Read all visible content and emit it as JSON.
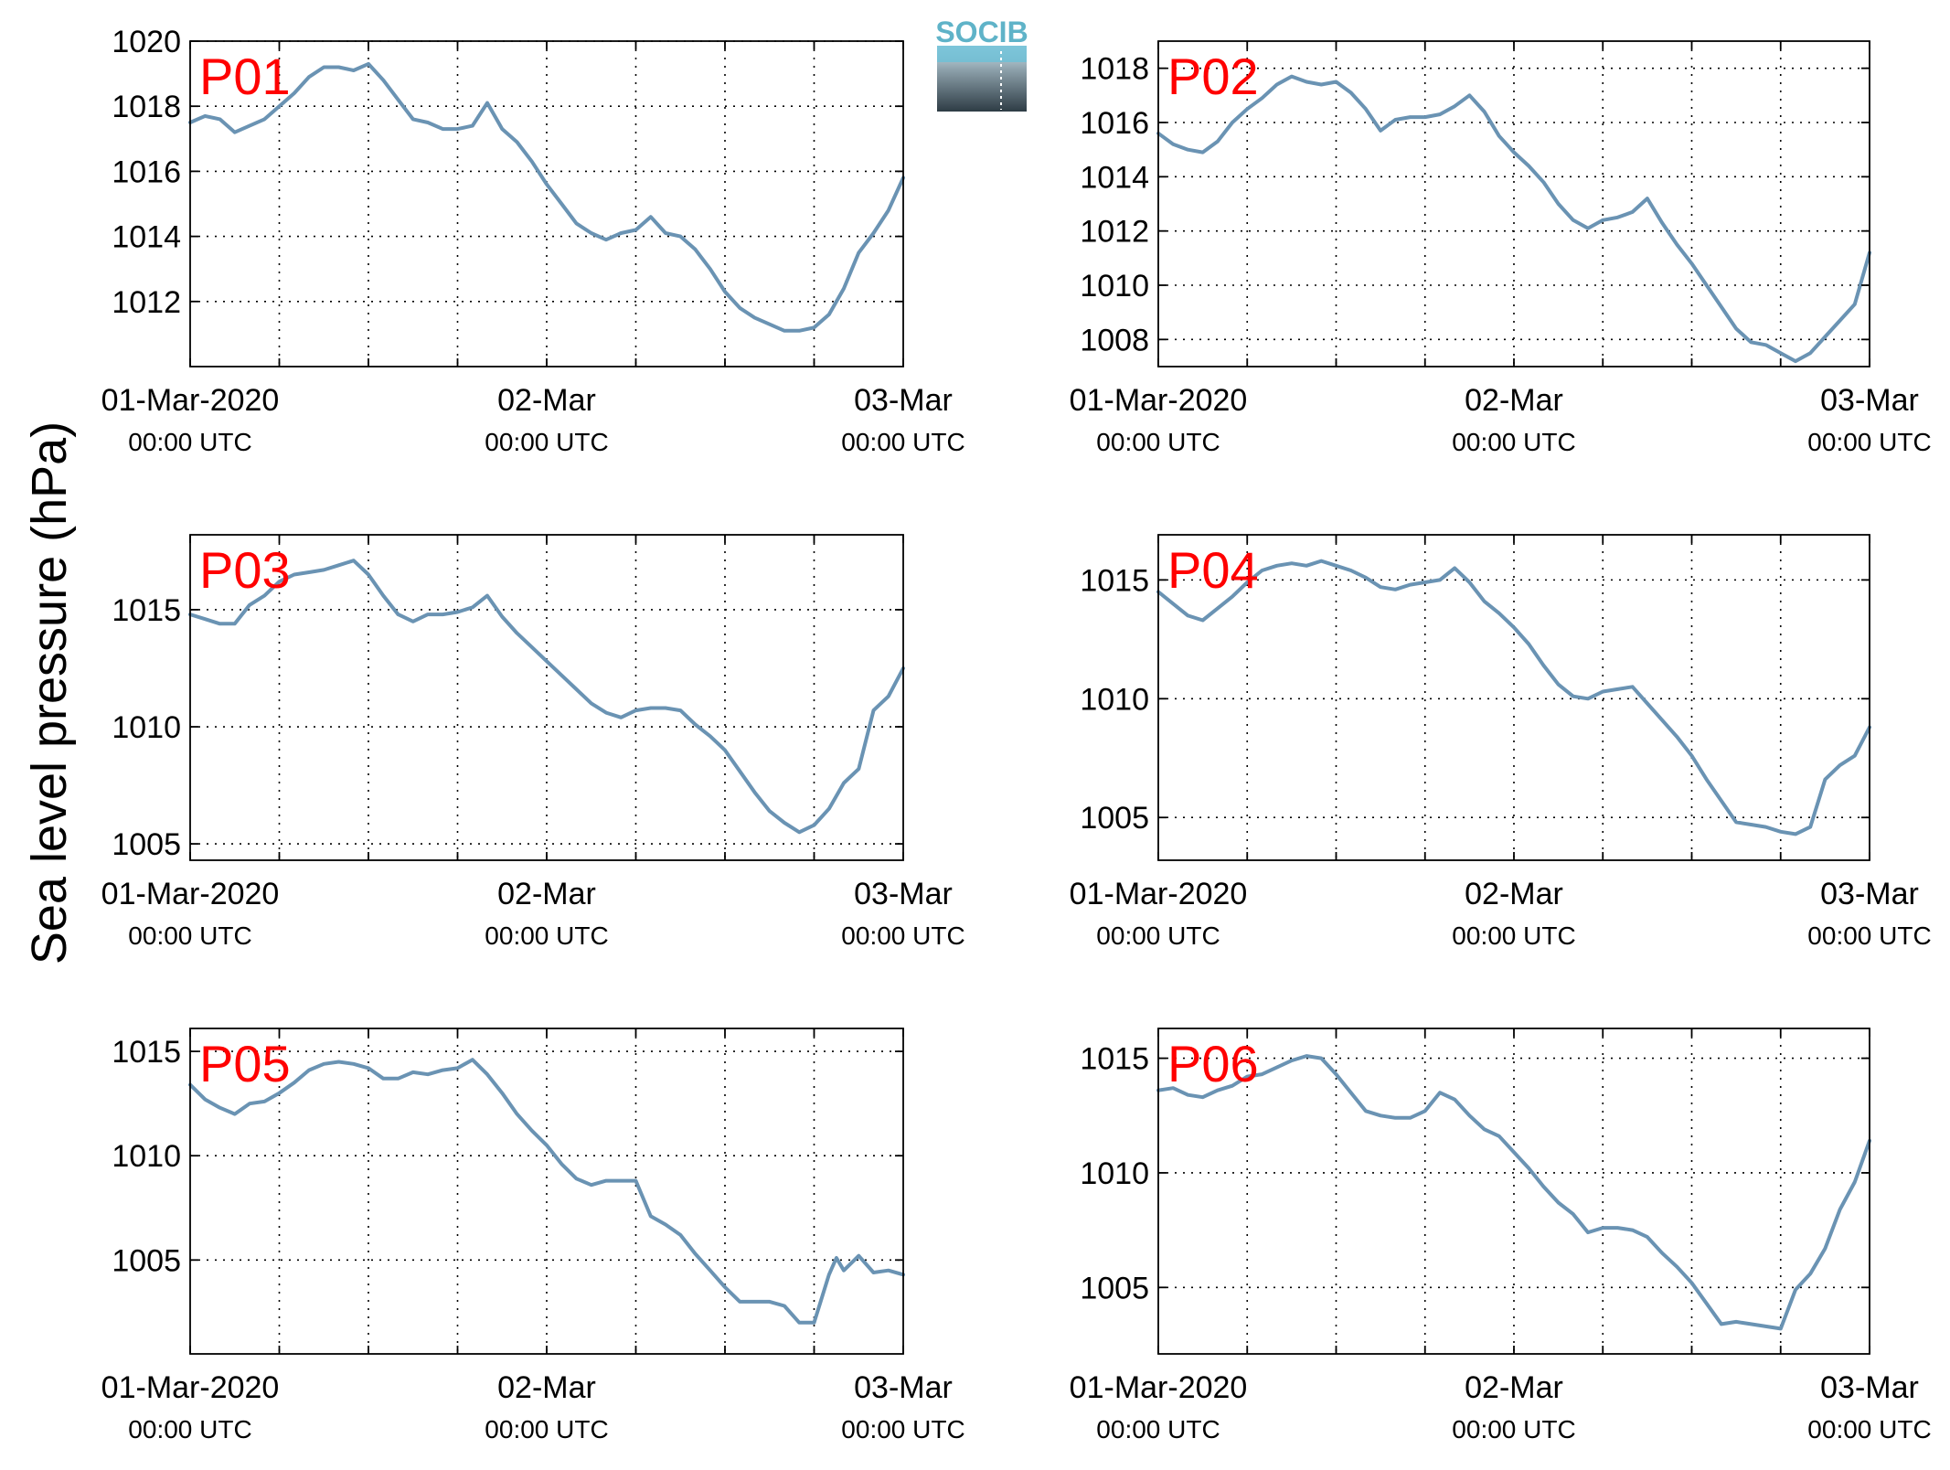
{
  "figure": {
    "ylabel": "Sea level pressure (hPa)",
    "logo_text": "SOCIB"
  },
  "colors": {
    "line": "#6a93b3",
    "panel_label": "#ff0000",
    "logo_text": "#5fb3c8",
    "logo_dark": "#2e3c45",
    "grid": "#000000"
  },
  "x_ticks": [
    {
      "x": 0,
      "main": "01-Mar-2020",
      "sub": "00:00 UTC"
    },
    {
      "x": 24,
      "main": "02-Mar",
      "sub": "00:00 UTC"
    },
    {
      "x": 48,
      "main": "03-Mar",
      "sub": "00:00 UTC"
    }
  ],
  "chart_data": [
    {
      "type": "line",
      "label": "P01",
      "x_unit": "hours since 01-Mar-2020 00:00 UTC",
      "xlim": [
        0,
        48
      ],
      "ylim": [
        1010,
        1020
      ],
      "yticks": [
        1012,
        1014,
        1016,
        1018,
        1020
      ],
      "grid": true,
      "x": [
        0,
        1,
        2,
        3,
        4,
        5,
        6,
        7,
        8,
        9,
        10,
        11,
        12,
        13,
        14,
        15,
        16,
        17,
        18,
        19,
        20,
        21,
        22,
        23,
        24,
        25,
        26,
        27,
        28,
        29,
        30,
        31,
        32,
        33,
        34,
        35,
        36,
        37,
        38,
        39,
        40,
        41,
        42,
        43,
        44,
        45,
        46,
        47,
        48
      ],
      "y": [
        1017.5,
        1017.7,
        1017.6,
        1017.2,
        1017.4,
        1017.6,
        1018.0,
        1018.4,
        1018.9,
        1019.2,
        1019.2,
        1019.1,
        1019.3,
        1018.8,
        1018.2,
        1017.6,
        1017.5,
        1017.3,
        1017.3,
        1017.4,
        1018.1,
        1017.3,
        1016.9,
        1016.3,
        1015.6,
        1015.0,
        1014.4,
        1014.1,
        1013.9,
        1014.1,
        1014.2,
        1014.6,
        1014.1,
        1014.0,
        1013.6,
        1013.0,
        1012.3,
        1011.8,
        1011.5,
        1011.3,
        1011.1,
        1011.1,
        1011.2,
        1011.6,
        1012.4,
        1013.5,
        1014.1,
        1014.8,
        1015.8
      ]
    },
    {
      "type": "line",
      "label": "P02",
      "x_unit": "hours since 01-Mar-2020 00:00 UTC",
      "xlim": [
        0,
        48
      ],
      "ylim": [
        1007,
        1019
      ],
      "yticks": [
        1008,
        1010,
        1012,
        1014,
        1016,
        1018
      ],
      "grid": true,
      "x": [
        0,
        1,
        2,
        3,
        4,
        5,
        6,
        7,
        8,
        9,
        10,
        11,
        12,
        13,
        14,
        15,
        16,
        17,
        18,
        19,
        20,
        21,
        22,
        23,
        24,
        25,
        26,
        27,
        28,
        29,
        30,
        31,
        32,
        33,
        34,
        35,
        36,
        37,
        38,
        39,
        40,
        41,
        42,
        43,
        44,
        45,
        46,
        47,
        48
      ],
      "y": [
        1015.6,
        1015.2,
        1015.0,
        1014.9,
        1015.3,
        1016.0,
        1016.5,
        1016.9,
        1017.4,
        1017.7,
        1017.5,
        1017.4,
        1017.5,
        1017.1,
        1016.5,
        1015.7,
        1016.1,
        1016.2,
        1016.2,
        1016.3,
        1016.6,
        1017.0,
        1016.4,
        1015.5,
        1014.9,
        1014.4,
        1013.8,
        1013.0,
        1012.4,
        1012.1,
        1012.4,
        1012.5,
        1012.7,
        1013.2,
        1012.3,
        1011.5,
        1010.8,
        1010.0,
        1009.2,
        1008.4,
        1007.9,
        1007.8,
        1007.5,
        1007.2,
        1007.5,
        1008.1,
        1008.7,
        1009.3,
        1011.2
      ]
    },
    {
      "type": "line",
      "label": "P03",
      "x_unit": "hours since 01-Mar-2020 00:00 UTC",
      "xlim": [
        0,
        48
      ],
      "ylim": [
        1004.3,
        1018.2
      ],
      "yticks": [
        1005,
        1010,
        1015
      ],
      "grid": true,
      "x": [
        0,
        1,
        2,
        3,
        4,
        5,
        6,
        7,
        8,
        9,
        10,
        11,
        12,
        13,
        14,
        15,
        16,
        17,
        18,
        19,
        20,
        21,
        22,
        23,
        24,
        25,
        26,
        27,
        28,
        29,
        30,
        31,
        32,
        33,
        34,
        35,
        36,
        37,
        38,
        39,
        40,
        41,
        42,
        43,
        44,
        45,
        46,
        47,
        48
      ],
      "y": [
        1014.8,
        1014.6,
        1014.4,
        1014.4,
        1015.2,
        1015.6,
        1016.2,
        1016.5,
        1016.6,
        1016.7,
        1016.9,
        1017.1,
        1016.5,
        1015.6,
        1014.8,
        1014.5,
        1014.8,
        1014.8,
        1014.9,
        1015.1,
        1015.6,
        1014.7,
        1014.0,
        1013.4,
        1012.8,
        1012.2,
        1011.6,
        1011.0,
        1010.6,
        1010.4,
        1010.7,
        1010.8,
        1010.8,
        1010.7,
        1010.1,
        1009.6,
        1009.0,
        1008.1,
        1007.2,
        1006.4,
        1005.9,
        1005.5,
        1005.8,
        1006.5,
        1007.6,
        1008.2,
        1010.7,
        1011.3,
        1012.5
      ]
    },
    {
      "type": "line",
      "label": "P04",
      "x_unit": "hours since 01-Mar-2020 00:00 UTC",
      "xlim": [
        0,
        48
      ],
      "ylim": [
        1003.2,
        1016.9
      ],
      "yticks": [
        1005,
        1010,
        1015
      ],
      "grid": true,
      "x": [
        0,
        1,
        2,
        3,
        4,
        5,
        6,
        7,
        8,
        9,
        10,
        11,
        12,
        13,
        14,
        15,
        16,
        17,
        18,
        19,
        20,
        21,
        22,
        23,
        24,
        25,
        26,
        27,
        28,
        29,
        30,
        31,
        32,
        33,
        34,
        35,
        36,
        37,
        38,
        39,
        40,
        41,
        42,
        43,
        44,
        45,
        46,
        47,
        48
      ],
      "y": [
        1014.5,
        1014.0,
        1013.5,
        1013.3,
        1013.8,
        1014.3,
        1014.9,
        1015.4,
        1015.6,
        1015.7,
        1015.6,
        1015.8,
        1015.6,
        1015.4,
        1015.1,
        1014.7,
        1014.6,
        1014.8,
        1014.9,
        1015.0,
        1015.5,
        1014.9,
        1014.1,
        1013.6,
        1013.0,
        1012.3,
        1011.4,
        1010.6,
        1010.1,
        1010.0,
        1010.3,
        1010.4,
        1010.5,
        1009.8,
        1009.1,
        1008.4,
        1007.6,
        1006.6,
        1005.7,
        1004.8,
        1004.7,
        1004.6,
        1004.4,
        1004.3,
        1004.6,
        1006.6,
        1007.2,
        1007.6,
        1008.8
      ]
    },
    {
      "type": "line",
      "label": "P05",
      "x_unit": "hours since 01-Mar-2020 00:00 UTC",
      "xlim": [
        0,
        48
      ],
      "ylim": [
        1000.5,
        1016.1
      ],
      "yticks": [
        1005,
        1010,
        1015
      ],
      "grid": true,
      "x": [
        0,
        1,
        2,
        3,
        4,
        5,
        6,
        7,
        8,
        9,
        10,
        11,
        12,
        13,
        14,
        15,
        16,
        17,
        18,
        19,
        20,
        21,
        22,
        23,
        24,
        25,
        26,
        27,
        28,
        29,
        30,
        31,
        32,
        33,
        34,
        35,
        36,
        37,
        38,
        39,
        40,
        41,
        42,
        43,
        43.5,
        44,
        45,
        46,
        47,
        48
      ],
      "y": [
        1013.4,
        1012.7,
        1012.3,
        1012.0,
        1012.5,
        1012.6,
        1013.0,
        1013.5,
        1014.1,
        1014.4,
        1014.5,
        1014.4,
        1014.2,
        1013.7,
        1013.7,
        1014.0,
        1013.9,
        1014.1,
        1014.2,
        1014.6,
        1013.9,
        1013.0,
        1012.0,
        1011.2,
        1010.5,
        1009.6,
        1008.9,
        1008.6,
        1008.8,
        1008.8,
        1008.8,
        1007.1,
        1006.7,
        1006.2,
        1005.3,
        1004.5,
        1003.7,
        1003.0,
        1003.0,
        1003.0,
        1002.8,
        1002.0,
        1002.0,
        1004.3,
        1005.1,
        1004.5,
        1005.2,
        1004.4,
        1004.5,
        1004.3
      ]
    },
    {
      "type": "line",
      "label": "P06",
      "x_unit": "hours since 01-Mar-2020 00:00 UTC",
      "xlim": [
        0,
        48
      ],
      "ylim": [
        1002.1,
        1016.3
      ],
      "yticks": [
        1005,
        1010,
        1015
      ],
      "grid": true,
      "x": [
        0,
        1,
        2,
        3,
        4,
        5,
        6,
        7,
        8,
        9,
        10,
        11,
        12,
        13,
        14,
        15,
        16,
        17,
        18,
        19,
        20,
        21,
        22,
        23,
        24,
        25,
        26,
        27,
        28,
        29,
        30,
        31,
        32,
        33,
        34,
        35,
        36,
        37,
        38,
        39,
        40,
        41,
        42,
        43,
        44,
        45,
        46,
        47,
        48
      ],
      "y": [
        1013.6,
        1013.7,
        1013.4,
        1013.3,
        1013.6,
        1013.8,
        1014.2,
        1014.3,
        1014.6,
        1014.9,
        1015.1,
        1015.0,
        1014.3,
        1013.5,
        1012.7,
        1012.5,
        1012.4,
        1012.4,
        1012.7,
        1013.5,
        1013.2,
        1012.5,
        1011.9,
        1011.6,
        1010.9,
        1010.2,
        1009.4,
        1008.7,
        1008.2,
        1007.4,
        1007.6,
        1007.6,
        1007.5,
        1007.2,
        1006.5,
        1005.9,
        1005.2,
        1004.3,
        1003.4,
        1003.5,
        1003.4,
        1003.3,
        1003.2,
        1004.9,
        1005.6,
        1006.7,
        1008.4,
        1009.6,
        1011.4
      ]
    }
  ]
}
